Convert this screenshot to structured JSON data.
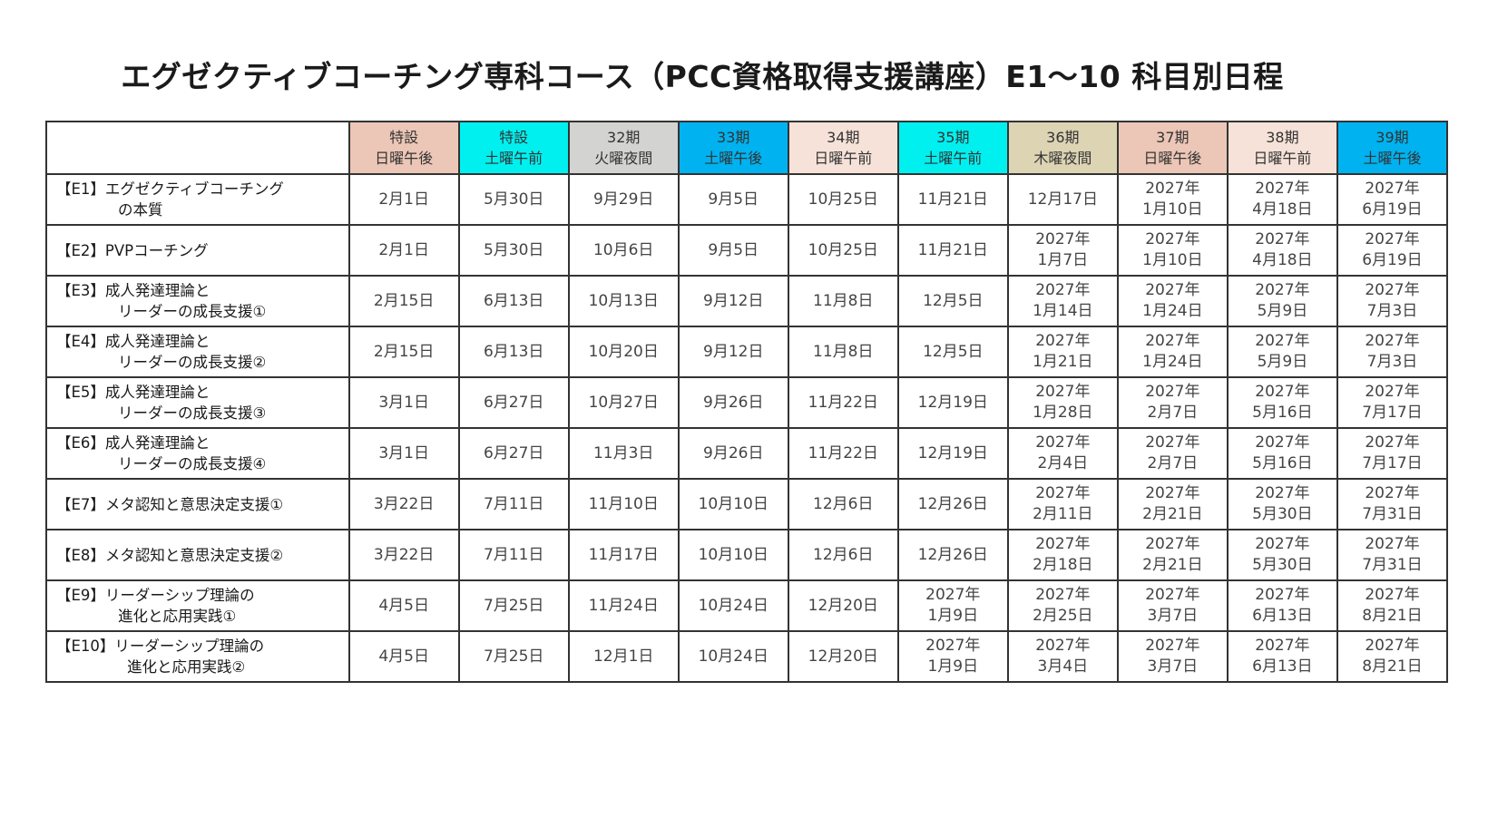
{
  "title": "エグゼクティブコーチング専科コース（PCC資格取得支援講座）E1〜10 科目別日程",
  "columns": [
    {
      "line1": "特設",
      "line2": "日曜午後",
      "color": "#ecc6b6"
    },
    {
      "line1": "特設",
      "line2": "土曜午前",
      "color": "#00f0f0"
    },
    {
      "line1": "32期",
      "line2": "火曜夜間",
      "color": "#d3d4d1"
    },
    {
      "line1": "33期",
      "line2": "土曜午後",
      "color": "#00b2ef"
    },
    {
      "line1": "34期",
      "line2": "日曜午前",
      "color": "#f6e2d8"
    },
    {
      "line1": "35期",
      "line2": "土曜午前",
      "color": "#00f0f0"
    },
    {
      "line1": "36期",
      "line2": "木曜夜間",
      "color": "#ddd4b4"
    },
    {
      "line1": "37期",
      "line2": "日曜午後",
      "color": "#ecc6b6"
    },
    {
      "line1": "38期",
      "line2": "日曜午前",
      "color": "#f6e2d8"
    },
    {
      "line1": "39期",
      "line2": "土曜午後",
      "color": "#00b2ef"
    }
  ],
  "rows": [
    {
      "label1": "【E1】エグゼクティブコーチング",
      "label2": "の本質",
      "cells": [
        [
          "2月1日"
        ],
        [
          "5月30日"
        ],
        [
          "9月29日"
        ],
        [
          "9月5日"
        ],
        [
          "10月25日"
        ],
        [
          "11月21日"
        ],
        [
          "12月17日"
        ],
        [
          "2027年",
          "1月10日"
        ],
        [
          "2027年",
          "4月18日"
        ],
        [
          "2027年",
          "6月19日"
        ]
      ]
    },
    {
      "label1": "【E2】PVPコーチング",
      "label2": "",
      "cells": [
        [
          "2月1日"
        ],
        [
          "5月30日"
        ],
        [
          "10月6日"
        ],
        [
          "9月5日"
        ],
        [
          "10月25日"
        ],
        [
          "11月21日"
        ],
        [
          "2027年",
          "1月7日"
        ],
        [
          "2027年",
          "1月10日"
        ],
        [
          "2027年",
          "4月18日"
        ],
        [
          "2027年",
          "6月19日"
        ]
      ]
    },
    {
      "label1": "【E3】成人発達理論と",
      "label2": "リーダーの成長支援①",
      "cells": [
        [
          "2月15日"
        ],
        [
          "6月13日"
        ],
        [
          "10月13日"
        ],
        [
          "9月12日"
        ],
        [
          "11月8日"
        ],
        [
          "12月5日"
        ],
        [
          "2027年",
          "1月14日"
        ],
        [
          "2027年",
          "1月24日"
        ],
        [
          "2027年",
          "5月9日"
        ],
        [
          "2027年",
          "7月3日"
        ]
      ]
    },
    {
      "label1": "【E4】成人発達理論と",
      "label2": "リーダーの成長支援②",
      "cells": [
        [
          "2月15日"
        ],
        [
          "6月13日"
        ],
        [
          "10月20日"
        ],
        [
          "9月12日"
        ],
        [
          "11月8日"
        ],
        [
          "12月5日"
        ],
        [
          "2027年",
          "1月21日"
        ],
        [
          "2027年",
          "1月24日"
        ],
        [
          "2027年",
          "5月9日"
        ],
        [
          "2027年",
          "7月3日"
        ]
      ]
    },
    {
      "label1": "【E5】成人発達理論と",
      "label2": "リーダーの成長支援③",
      "cells": [
        [
          "3月1日"
        ],
        [
          "6月27日"
        ],
        [
          "10月27日"
        ],
        [
          "9月26日"
        ],
        [
          "11月22日"
        ],
        [
          "12月19日"
        ],
        [
          "2027年",
          "1月28日"
        ],
        [
          "2027年",
          "2月7日"
        ],
        [
          "2027年",
          "5月16日"
        ],
        [
          "2027年",
          "7月17日"
        ]
      ]
    },
    {
      "label1": "【E6】成人発達理論と",
      "label2": "リーダーの成長支援④",
      "cells": [
        [
          "3月1日"
        ],
        [
          "6月27日"
        ],
        [
          "11月3日"
        ],
        [
          "9月26日"
        ],
        [
          "11月22日"
        ],
        [
          "12月19日"
        ],
        [
          "2027年",
          "2月4日"
        ],
        [
          "2027年",
          "2月7日"
        ],
        [
          "2027年",
          "5月16日"
        ],
        [
          "2027年",
          "7月17日"
        ]
      ]
    },
    {
      "label1": "【E7】メタ認知と意思決定支援①",
      "label2": "",
      "cells": [
        [
          "3月22日"
        ],
        [
          "7月11日"
        ],
        [
          "11月10日"
        ],
        [
          "10月10日"
        ],
        [
          "12月6日"
        ],
        [
          "12月26日"
        ],
        [
          "2027年",
          "2月11日"
        ],
        [
          "2027年",
          "2月21日"
        ],
        [
          "2027年",
          "5月30日"
        ],
        [
          "2027年",
          "7月31日"
        ]
      ]
    },
    {
      "label1": "【E8】メタ認知と意思決定支援②",
      "label2": "",
      "cells": [
        [
          "3月22日"
        ],
        [
          "7月11日"
        ],
        [
          "11月17日"
        ],
        [
          "10月10日"
        ],
        [
          "12月6日"
        ],
        [
          "12月26日"
        ],
        [
          "2027年",
          "2月18日"
        ],
        [
          "2027年",
          "2月21日"
        ],
        [
          "2027年",
          "5月30日"
        ],
        [
          "2027年",
          "7月31日"
        ]
      ]
    },
    {
      "label1": "【E9】リーダーシップ理論の",
      "label2": "進化と応用実践①",
      "cells": [
        [
          "4月5日"
        ],
        [
          "7月25日"
        ],
        [
          "11月24日"
        ],
        [
          "10月24日"
        ],
        [
          "12月20日"
        ],
        [
          "2027年",
          "1月9日"
        ],
        [
          "2027年",
          "2月25日"
        ],
        [
          "2027年",
          "3月7日"
        ],
        [
          "2027年",
          "6月13日"
        ],
        [
          "2027年",
          "8月21日"
        ]
      ]
    },
    {
      "label1": "【E10】リーダーシップ理論の",
      "label2": "進化と応用実践②",
      "cells": [
        [
          "4月5日"
        ],
        [
          "7月25日"
        ],
        [
          "12月1日"
        ],
        [
          "10月24日"
        ],
        [
          "12月20日"
        ],
        [
          "2027年",
          "1月9日"
        ],
        [
          "2027年",
          "3月4日"
        ],
        [
          "2027年",
          "3月7日"
        ],
        [
          "2027年",
          "6月13日"
        ],
        [
          "2027年",
          "8月21日"
        ]
      ]
    }
  ]
}
